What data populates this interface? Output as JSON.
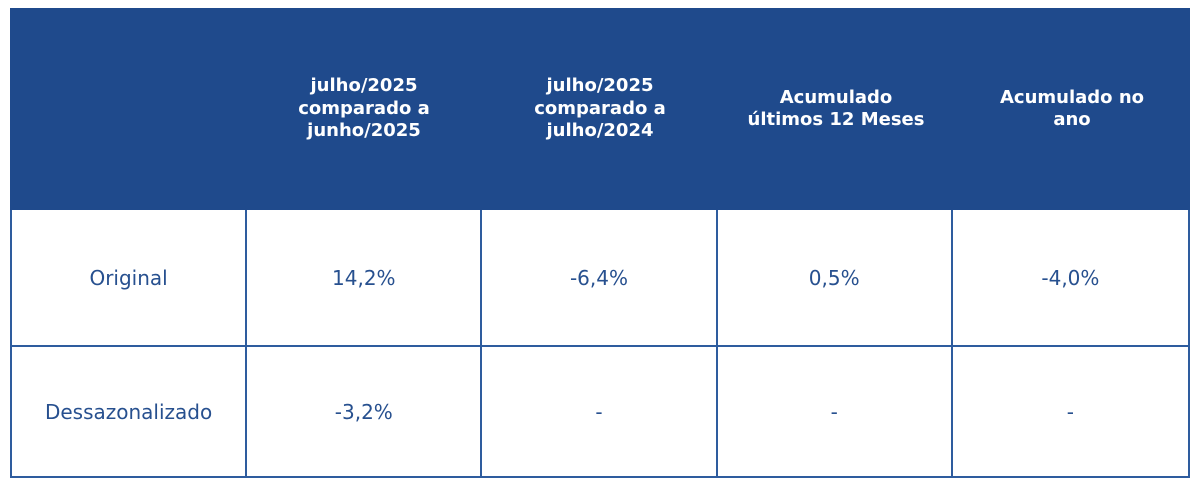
{
  "colors": {
    "header_bg": "#1F4A8C",
    "border": "#2E5C9E",
    "header_text": "#FFFFFF",
    "cell_text": "#27508F",
    "page_bg": "#FFFFFF"
  },
  "chart_data": {
    "type": "table",
    "columns": [
      "",
      "julho/2025 comparado a junho/2025",
      "julho/2025 comparado a julho/2024",
      "Acumulado últimos 12 Meses",
      "Acumulado no ano"
    ],
    "rows": [
      {
        "label": "Original",
        "values": [
          "14,2%",
          "-6,4%",
          "0,5%",
          "-4,0%"
        ]
      },
      {
        "label": "Dessazonalizado",
        "values": [
          "-3,2%",
          "-",
          "-",
          "-"
        ]
      }
    ]
  },
  "table": {
    "header_cells": [
      "",
      "julho/2025\ncomparado a\njunho/2025",
      "julho/2025\ncomparado a\njulho/2024",
      "Acumulado\núltimos 12 Meses",
      "Acumulado no\nano"
    ]
  }
}
